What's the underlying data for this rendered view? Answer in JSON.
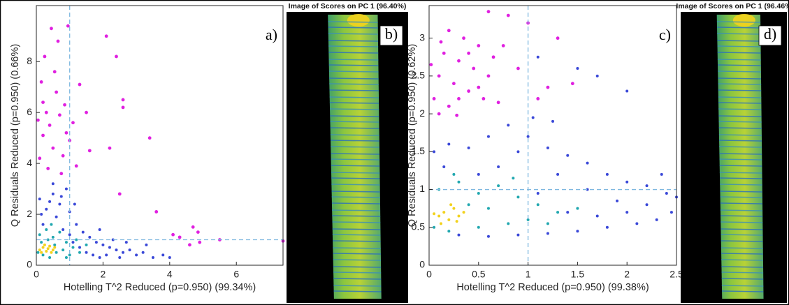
{
  "chart_data": [
    {
      "type": "scatter",
      "label": "a)",
      "x_label": "Hotelling T^2 Reduced (p=0.950) (99.34%)",
      "y_label": "Q Residuals Reduced (p=0.950) (0.66%)",
      "xlim": [
        0,
        7.4
      ],
      "ylim": [
        0,
        10.2
      ],
      "xticks": [
        0,
        2,
        4,
        6
      ],
      "yticks": [
        0,
        2,
        4,
        6,
        8
      ],
      "vlines": [
        1
      ],
      "hlines": [
        1
      ],
      "series": [
        {
          "color": "#e020e0",
          "x": [
            0.1,
            0.2,
            0.3,
            0.15,
            0.4,
            0.5,
            0.6,
            0.7,
            0.25,
            0.45,
            0.8,
            0.9,
            0.35,
            0.55,
            0.65,
            0.75,
            0.2,
            0.85,
            0.05,
            1.0,
            1.1,
            1.3,
            1.2,
            1.5,
            1.6,
            2.1,
            2.4,
            2.6,
            2.6,
            3.4,
            2.2,
            3.6,
            2.5,
            4.1,
            4.3,
            4.6,
            4.7,
            4.85,
            4.9,
            5.5,
            7.4,
            0.95
          ],
          "y": [
            4.2,
            5.1,
            6.0,
            7.2,
            5.5,
            4.6,
            6.8,
            5.9,
            8.2,
            9.3,
            4.3,
            5.2,
            3.8,
            7.6,
            8.8,
            3.6,
            6.4,
            6.3,
            5.7,
            4.9,
            5.6,
            7.1,
            3.9,
            6.0,
            4.5,
            9.0,
            8.2,
            6.5,
            6.2,
            5.0,
            4.6,
            2.1,
            2.8,
            1.2,
            1.1,
            0.8,
            1.5,
            1.3,
            0.9,
            1.0,
            0.95,
            9.4
          ]
        },
        {
          "color": "#3a48d8",
          "x": [
            0.1,
            0.3,
            0.5,
            0.7,
            0.9,
            0.2,
            0.6,
            1.0,
            1.2,
            1.4,
            1.6,
            1.8,
            2.0,
            2.2,
            2.4,
            2.6,
            2.8,
            3.0,
            3.2,
            3.5,
            3.8,
            4.0,
            1.1,
            1.3,
            1.5,
            1.7,
            1.9,
            2.1,
            0.8,
            1.0,
            0.4,
            0.15,
            0.75,
            1.9,
            2.3,
            2.7,
            3.3,
            2.5,
            0.5,
            1.15
          ],
          "y": [
            2.6,
            2.2,
            2.8,
            2.4,
            3.0,
            1.6,
            1.9,
            2.1,
            1.6,
            1.3,
            1.1,
            0.9,
            0.8,
            0.7,
            0.6,
            0.5,
            0.6,
            0.4,
            0.5,
            0.3,
            0.4,
            0.3,
            0.9,
            0.7,
            0.5,
            0.4,
            0.3,
            0.4,
            1.4,
            1.2,
            2.5,
            2.0,
            2.7,
            1.4,
            1.0,
            0.9,
            0.8,
            0.3,
            3.2,
            2.4
          ]
        },
        {
          "color": "#22a8b0",
          "x": [
            0.1,
            0.3,
            0.5,
            0.7,
            0.9,
            1.1,
            1.3,
            0.2,
            0.4,
            0.6,
            0.8,
            1.0,
            0.15,
            0.35,
            0.55,
            1.2,
            1.5,
            0.05,
            0.9,
            0.45
          ],
          "y": [
            1.2,
            1.4,
            1.1,
            1.3,
            0.9,
            0.7,
            0.5,
            0.4,
            0.3,
            0.5,
            0.6,
            0.4,
            0.9,
            1.0,
            0.8,
            1.0,
            0.8,
            0.5,
            0.3,
            1.6
          ]
        },
        {
          "color": "#f2d21e",
          "x": [
            0.1,
            0.2,
            0.3,
            0.4,
            0.5,
            0.15,
            0.25,
            0.35,
            0.55,
            0.45
          ],
          "y": [
            0.6,
            0.7,
            0.55,
            0.75,
            0.6,
            0.5,
            0.8,
            0.65,
            0.7,
            0.5
          ]
        }
      ]
    },
    {
      "type": "image",
      "title": "Image of Scores on PC 1 (96.40%)",
      "label": "b)"
    },
    {
      "type": "scatter",
      "label": "c)",
      "x_label": "Hotelling T^2 Reduced (p=0.950) (99.38%)",
      "y_label": "Q Residuals Reduced (p=0.950) (0.62%)",
      "xlim": [
        0,
        2.5
      ],
      "ylim": [
        0,
        3.43
      ],
      "xticks": [
        0,
        0.5,
        1,
        1.5,
        2,
        2.5
      ],
      "yticks": [
        0,
        0.5,
        1,
        1.5,
        2,
        2.5,
        3
      ],
      "vlines": [
        1
      ],
      "hlines": [
        1
      ],
      "series": [
        {
          "color": "#e020e0",
          "x": [
            0.05,
            0.1,
            0.15,
            0.2,
            0.25,
            0.3,
            0.35,
            0.4,
            0.45,
            0.5,
            0.55,
            0.6,
            0.1,
            0.2,
            0.3,
            0.4,
            0.5,
            0.65,
            0.7,
            0.02,
            0.12,
            0.28,
            0.8,
            0.9,
            1.1,
            1.2,
            1.3,
            1.45,
            0.75,
            0.6,
            1.0
          ],
          "y": [
            2.2,
            2.5,
            2.8,
            2.1,
            2.4,
            2.7,
            3.0,
            2.3,
            2.6,
            2.9,
            2.2,
            2.5,
            2.0,
            3.1,
            2.2,
            2.8,
            2.35,
            2.75,
            2.15,
            2.65,
            2.95,
            1.98,
            3.3,
            2.6,
            2.2,
            2.35,
            3.0,
            2.4,
            2.9,
            3.35,
            3.2
          ]
        },
        {
          "color": "#3a48d8",
          "x": [
            0.05,
            0.2,
            0.4,
            0.6,
            0.8,
            1.0,
            1.2,
            1.4,
            1.6,
            1.8,
            2.0,
            2.2,
            2.4,
            2.5,
            0.3,
            0.6,
            0.9,
            1.2,
            1.5,
            1.8,
            2.1,
            2.3,
            2.45,
            1.3,
            1.6,
            1.9,
            2.2,
            1.1,
            1.4,
            1.7,
            2.0,
            0.7,
            0.5,
            0.9,
            1.5,
            1.7,
            2.0,
            1.1,
            1.25,
            1.05,
            0.15,
            2.35
          ],
          "y": [
            1.5,
            1.6,
            1.55,
            1.7,
            1.85,
            1.7,
            1.55,
            1.45,
            1.35,
            1.2,
            1.1,
            1.05,
            0.95,
            0.9,
            0.4,
            0.38,
            0.4,
            0.42,
            0.45,
            0.5,
            0.55,
            0.6,
            0.7,
            1.2,
            1.0,
            0.85,
            0.8,
            0.95,
            0.7,
            0.65,
            0.7,
            1.3,
            1.2,
            1.5,
            2.6,
            2.5,
            2.3,
            2.75,
            1.9,
            1.95,
            1.3,
            1.2
          ]
        },
        {
          "color": "#22a8b0",
          "x": [
            0.1,
            0.3,
            0.5,
            0.7,
            0.9,
            1.1,
            1.3,
            0.2,
            0.5,
            0.8,
            1.0,
            1.2,
            0.4,
            0.6,
            0.05,
            1.5,
            0.85,
            0.25
          ],
          "y": [
            1.0,
            1.1,
            0.95,
            1.05,
            0.9,
            0.8,
            0.7,
            0.45,
            0.5,
            0.55,
            0.6,
            0.55,
            0.8,
            0.75,
            0.5,
            0.75,
            1.15,
            1.2
          ]
        },
        {
          "color": "#f2d21e",
          "x": [
            0.1,
            0.15,
            0.2,
            0.25,
            0.3,
            0.12,
            0.22,
            0.35,
            0.05,
            0.28
          ],
          "y": [
            0.65,
            0.7,
            0.6,
            0.75,
            0.65,
            0.55,
            0.8,
            0.7,
            0.68,
            0.58
          ]
        }
      ]
    },
    {
      "type": "image",
      "title": "Image of Scores on PC 1 (96.46%",
      "label": "d)"
    }
  ]
}
